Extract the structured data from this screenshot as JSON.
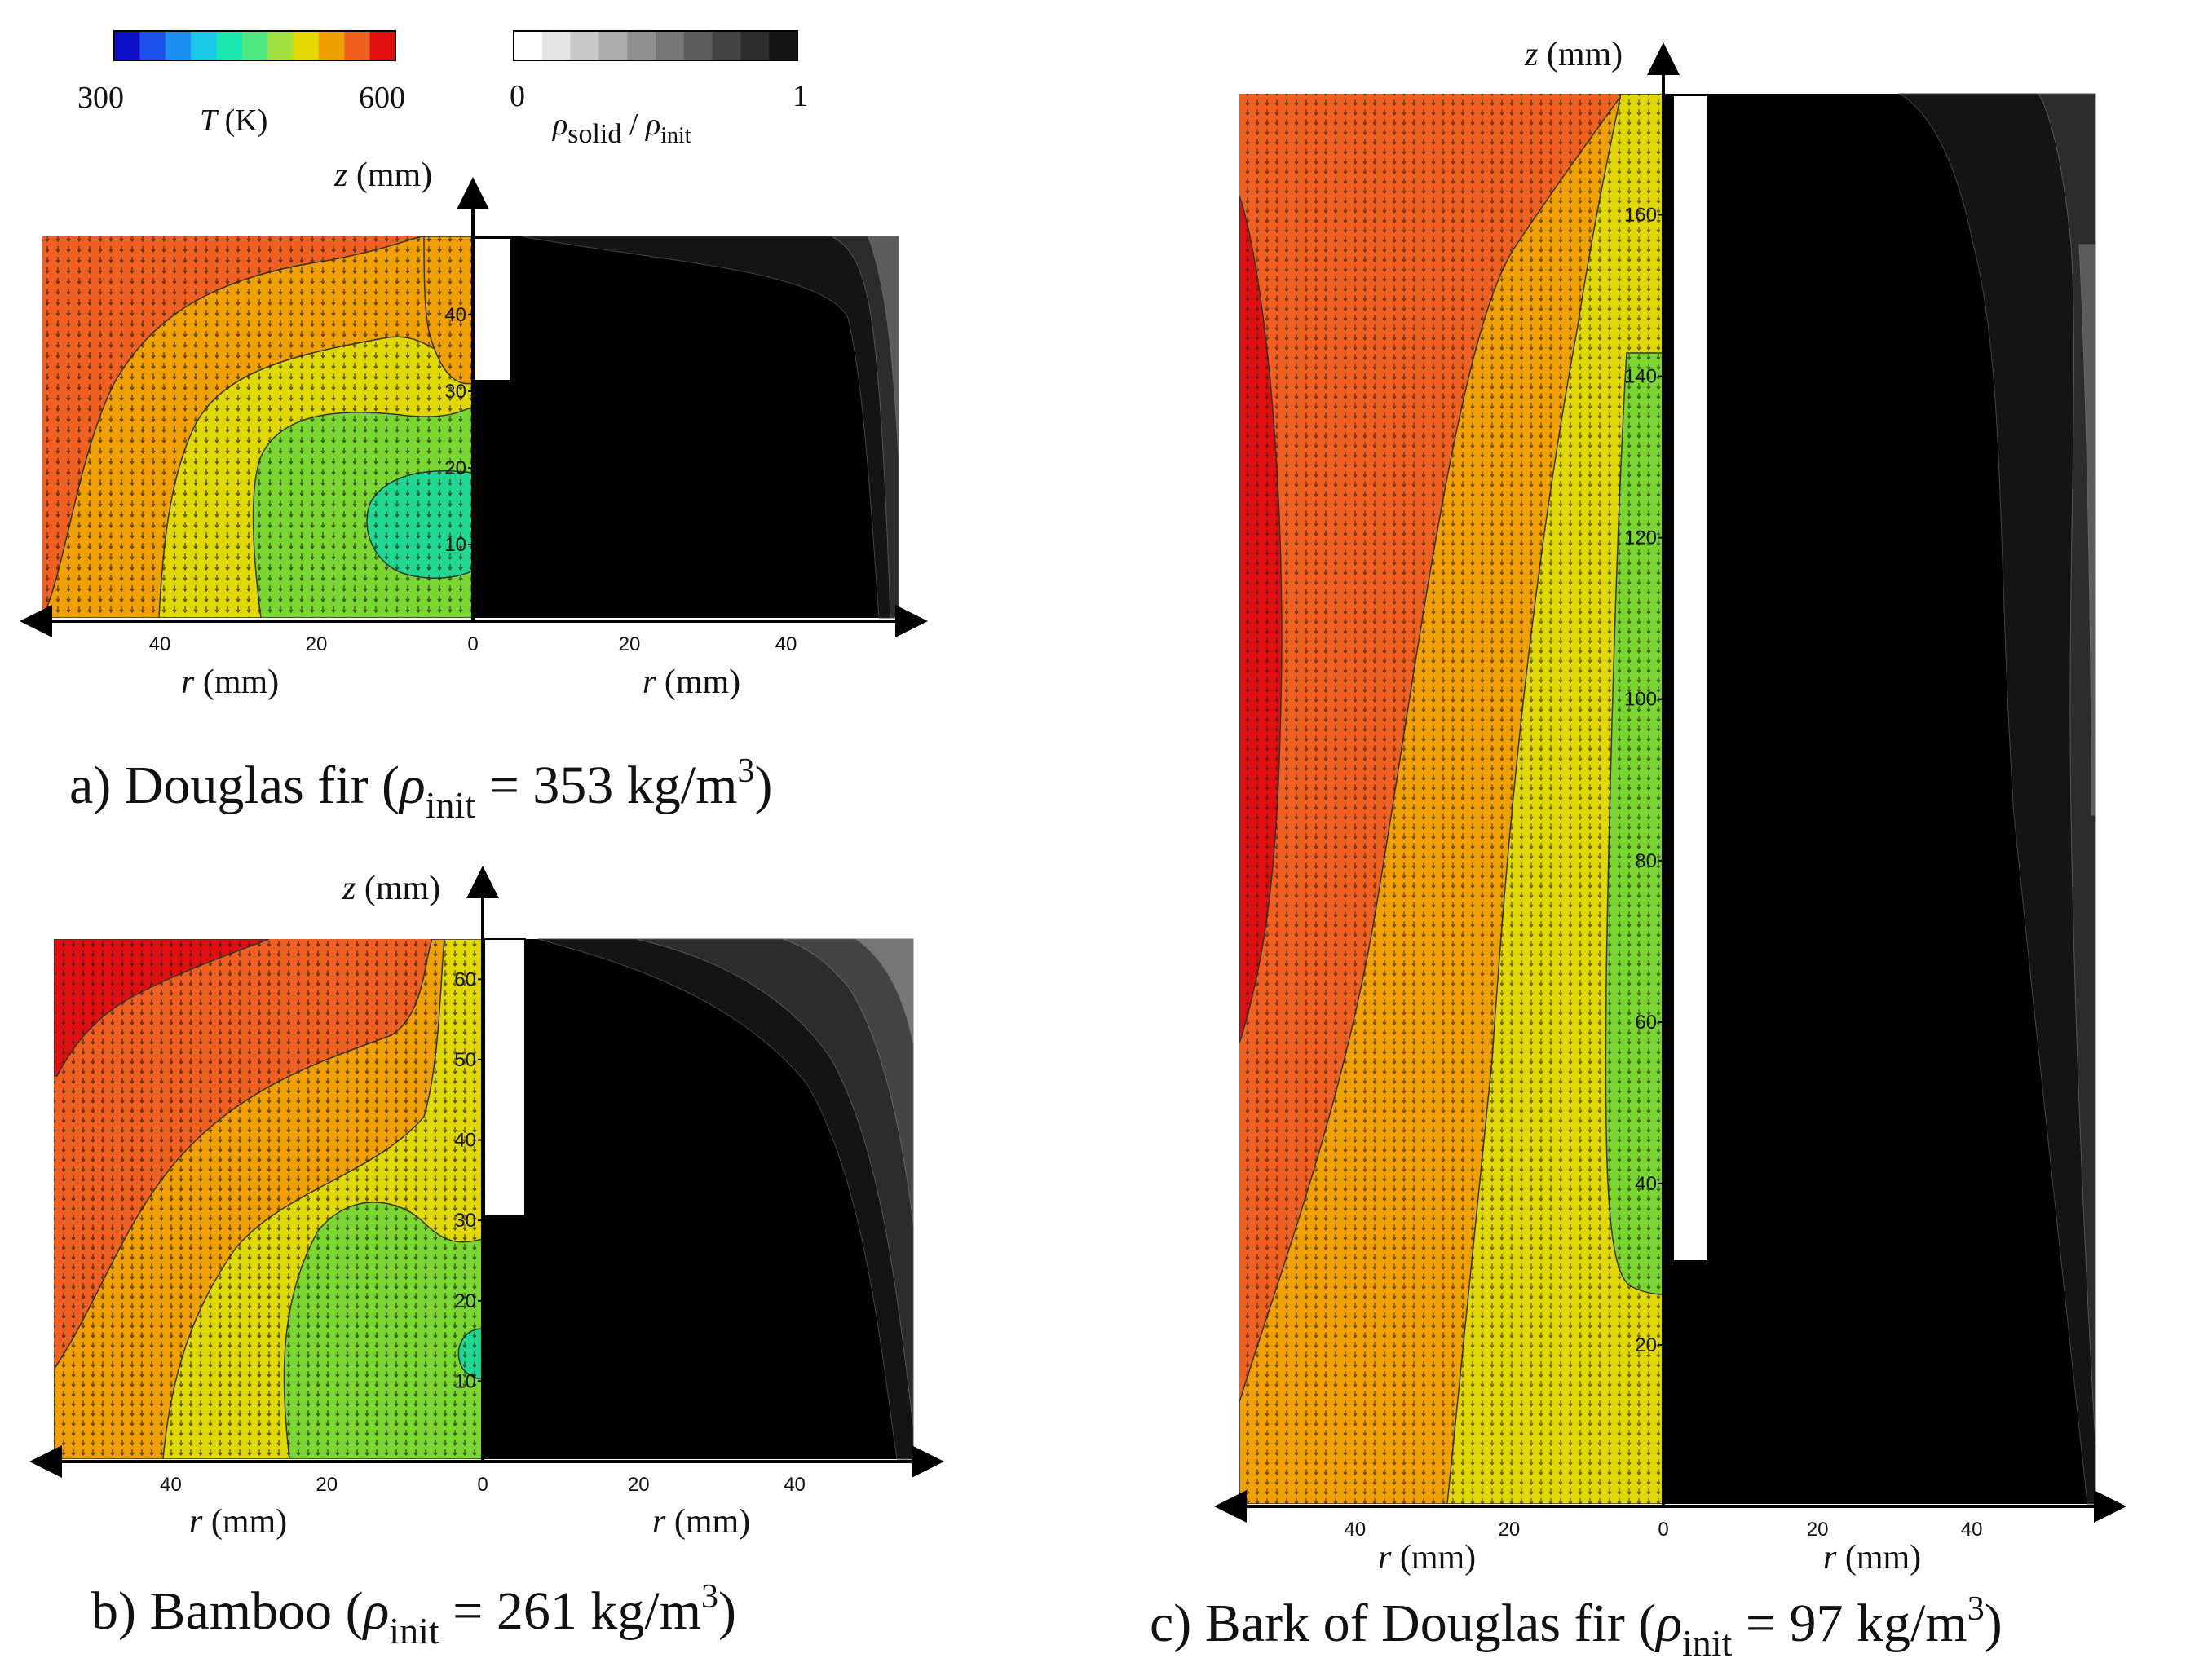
{
  "colors": {
    "temperature_scale": [
      "#1010c8",
      "#1c50e8",
      "#1c90f0",
      "#1cc8e8",
      "#1ce8b0",
      "#50e880",
      "#a0e040",
      "#e0d800",
      "#f0a000",
      "#f06020",
      "#e01010"
    ],
    "density_scale": [
      "#ffffff",
      "#e4e4e4",
      "#c8c8c8",
      "#acacac",
      "#909090",
      "#767676",
      "#5c5c5c",
      "#444444",
      "#2c2c2c",
      "#141414"
    ],
    "axis": "#000000",
    "vector": "#222222"
  },
  "colorbars": {
    "temperature": {
      "min_label": "300",
      "max_label": "600",
      "label_T": "T",
      "label_unit": " (K)"
    },
    "density": {
      "min_label": "0",
      "max_label": "1",
      "label_rho": "ρ",
      "label_solid": "solid",
      "label_slash": " / ",
      "label_init": "init"
    }
  },
  "axis_labels": {
    "z_var": "z",
    "z_unit": " (mm)",
    "r_var": "r",
    "r_unit": " (mm)"
  },
  "chart_data": [
    {
      "type": "contour",
      "id": "a",
      "caption": {
        "prefix": "a) Douglas fir (",
        "rho": "ρ",
        "sub": "init",
        "eq": " = 353 kg/m",
        "sup": "3",
        "end": ")"
      },
      "r_range_mm": [
        0,
        55
      ],
      "z_range_mm": [
        0,
        50
      ],
      "left_panel": "temperature T (K)",
      "right_panel": "ρsolid / ρinit",
      "r_ticks_left": [
        40,
        20,
        0
      ],
      "r_ticks_right": [
        20,
        40
      ],
      "z_ticks": [
        10,
        20,
        30,
        40
      ],
      "heater_depth_mm": 30,
      "temperature_bands": [
        {
          "color": "#f06020",
          "region": "outer edge and top"
        },
        {
          "color": "#f0a000",
          "region": "outer-middle"
        },
        {
          "color": "#e0d800",
          "region": "middle"
        },
        {
          "color": "#7ad630",
          "region": "inner"
        },
        {
          "color": "#20d890",
          "region": "core near z=10-17 mm"
        }
      ]
    },
    {
      "type": "contour",
      "id": "b",
      "caption": {
        "prefix": "b) Bamboo (",
        "rho": "ρ",
        "sub": "init",
        "eq": " = 261 kg/m",
        "sup": "3",
        "end": ")"
      },
      "r_range_mm": [
        0,
        55
      ],
      "z_range_mm": [
        0,
        65
      ],
      "left_panel": "temperature T (K)",
      "right_panel": "ρsolid / ρinit",
      "r_ticks_left": [
        40,
        20,
        0
      ],
      "r_ticks_right": [
        20,
        40
      ],
      "z_ticks": [
        10,
        20,
        30,
        40,
        50,
        60
      ],
      "heater_depth_mm": 30,
      "temperature_bands": [
        {
          "color": "#e01010",
          "region": "top-left corner"
        },
        {
          "color": "#f06020",
          "region": "outer upper"
        },
        {
          "color": "#f0a000",
          "region": "outer-middle"
        },
        {
          "color": "#e0d800",
          "region": "middle"
        },
        {
          "color": "#7ad630",
          "region": "inner lower"
        },
        {
          "color": "#20d890",
          "region": "small core near z=14 mm"
        }
      ]
    },
    {
      "type": "contour",
      "id": "c",
      "caption": {
        "prefix": "c) Bark of Douglas fir (",
        "rho": "ρ",
        "sub": "init",
        "eq": " = 97 kg/m",
        "sup": "3",
        "end": ")"
      },
      "r_range_mm": [
        0,
        55
      ],
      "z_range_mm": [
        0,
        175
      ],
      "left_panel": "temperature T (K)",
      "right_panel": "ρsolid / ρinit",
      "r_ticks_left": [
        40,
        20,
        0
      ],
      "r_ticks_right": [
        20,
        40
      ],
      "z_ticks": [
        20,
        40,
        60,
        80,
        100,
        120,
        140,
        160
      ],
      "heater_depth_mm": 30,
      "temperature_bands": [
        {
          "color": "#e01010",
          "region": "outer edge at mid-height"
        },
        {
          "color": "#f06020",
          "region": "outer"
        },
        {
          "color": "#f0a000",
          "region": "outer-middle"
        },
        {
          "color": "#e0d800",
          "region": "middle"
        },
        {
          "color": "#7ad630",
          "region": "near heater z=30-145 mm"
        }
      ]
    }
  ]
}
